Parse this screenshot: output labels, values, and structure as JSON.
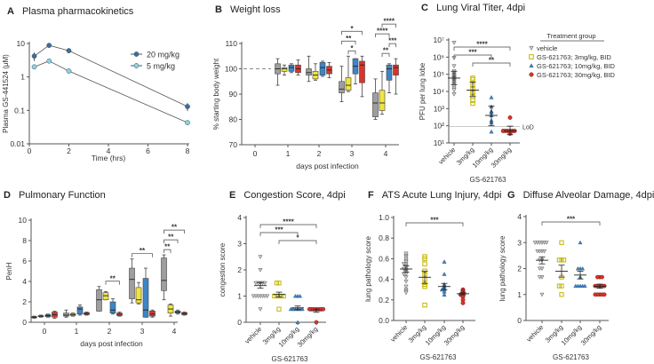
{
  "colors": {
    "vehicle": "#9e9e9e",
    "mg3": "#f0e442",
    "mg10": "#3d85c6",
    "mg30": "#d9342b",
    "pk20": "#3f6d98",
    "pk5": "#8fd3dc",
    "axis": "#555555"
  },
  "panels": {
    "A": {
      "letter": "A",
      "title": "Plasma pharmacokinetics"
    },
    "B": {
      "letter": "B",
      "title": "Weight loss"
    },
    "C": {
      "letter": "C",
      "title": "Lung Viral Titer, 4dpi"
    },
    "D": {
      "letter": "D",
      "title": "Pulmonary Function"
    },
    "E": {
      "letter": "E",
      "title": "Congestion Score, 4dpi"
    },
    "F": {
      "letter": "F",
      "title": "ATS Acute Lung Injury, 4dpi"
    },
    "G": {
      "letter": "G",
      "title": "Diffuse Alveolar Damage, 4dpi"
    }
  },
  "legend": {
    "title": "Treatment group",
    "items": [
      {
        "label": "vehicle",
        "marker": "triangle-down",
        "color": "#9e9e9e"
      },
      {
        "label": "GS-621763; 3mg/kg, BID",
        "marker": "square",
        "color": "#f0e442"
      },
      {
        "label": "GS-621763; 10mg/kg, BID",
        "marker": "triangle-up",
        "color": "#3d85c6"
      },
      {
        "label": "GS-621763; 30mg/kg, BID",
        "marker": "circle",
        "color": "#d9342b"
      }
    ]
  },
  "chart_data": [
    {
      "id": "A",
      "type": "line",
      "xlabel": "Time (hrs)",
      "ylabel": "Plasma GS-441524 (μM)",
      "yscale": "log",
      "ylim": [
        0.01,
        10
      ],
      "xlim": [
        0,
        8
      ],
      "xticks": [
        0,
        2,
        4,
        6,
        8
      ],
      "xtick_labels": [
        "0",
        "2",
        "4",
        "6",
        "8"
      ],
      "yticks": [
        0.01,
        0.1,
        1,
        10
      ],
      "ytick_labels": [
        "0.01",
        "0.1",
        "1",
        "10"
      ],
      "legend_position": "top-right",
      "series": [
        {
          "name": "20 mg/kg",
          "x": [
            0.25,
            1,
            2,
            8
          ],
          "y": [
            4.2,
            8.8,
            6.1,
            0.13
          ],
          "err": [
            1.2,
            0.6,
            0.3,
            0.035
          ]
        },
        {
          "name": "5 mg/kg",
          "x": [
            0.25,
            1,
            2,
            8
          ],
          "y": [
            2.0,
            3.0,
            1.5,
            0.043
          ],
          "err": [
            0.2,
            0.2,
            0.1,
            0.005
          ]
        }
      ]
    },
    {
      "id": "B",
      "type": "box",
      "xlabel": "days post infection",
      "ylabel": "% starting  body weight",
      "ylim": [
        70,
        110
      ],
      "yticks": [
        70,
        80,
        90,
        100,
        110
      ],
      "ytick_labels": [
        "70",
        "80",
        "90",
        "100",
        "110"
      ],
      "categories": [
        "0",
        "1",
        "2",
        "3",
        "4"
      ],
      "reference_line": 100,
      "groups": [
        "vehicle",
        "mg3",
        "mg10",
        "mg30"
      ],
      "boxes": {
        "1": [
          [
            93.5,
            98,
            100,
            102,
            104
          ],
          [
            97.5,
            99,
            100,
            100.5,
            101.5
          ],
          [
            98.5,
            99,
            100.5,
            101.5,
            102
          ],
          [
            97.5,
            98.5,
            100,
            101.5,
            103.5
          ]
        ],
        "2": [
          [
            95,
            97.5,
            98.5,
            100,
            105
          ],
          [
            95.5,
            96,
            97.5,
            99,
            102
          ],
          [
            97,
            97.5,
            100.5,
            102.5,
            103
          ],
          [
            96.5,
            98,
            99.5,
            101,
            102.5
          ]
        ],
        "3": [
          [
            87,
            90.5,
            92,
            95,
            101
          ],
          [
            91,
            91.5,
            93.5,
            96.5,
            105
          ],
          [
            94,
            98,
            101,
            104,
            104
          ],
          [
            89,
            94.5,
            101.5,
            103,
            105
          ]
        ],
        "4": [
          [
            80,
            81,
            86.5,
            90.5,
            96
          ],
          [
            82,
            83.5,
            86.5,
            91.5,
            99
          ],
          [
            90.5,
            95.5,
            100,
            101.5,
            102
          ],
          [
            90,
            97.5,
            100.5,
            101.5,
            104
          ]
        ]
      },
      "significance": [
        {
          "day": "3",
          "groups": [
            1,
            2
          ],
          "label": "*"
        },
        {
          "day": "3",
          "groups": [
            0,
            2
          ],
          "label": "**"
        },
        {
          "day": "3",
          "groups": [
            0,
            3
          ],
          "label": "*"
        },
        {
          "day": "4",
          "groups": [
            1,
            2
          ],
          "label": "**"
        },
        {
          "day": "4",
          "groups": [
            2,
            3
          ],
          "label": "***"
        },
        {
          "day": "4",
          "groups": [
            0,
            2
          ],
          "label": "****"
        },
        {
          "day": "4",
          "groups": [
            1,
            3
          ],
          "label": "****"
        }
      ]
    },
    {
      "id": "C",
      "type": "scatter",
      "xlabel": "GS-621763",
      "ylabel": "PFU per lung lobe",
      "yscale": "log",
      "ylim": [
        10,
        10000000
      ],
      "yticks": [
        10,
        100,
        1000,
        10000,
        100000,
        1000000,
        10000000
      ],
      "ytick_labels": [
        "10¹",
        "10²",
        "10³",
        "10⁴",
        "10⁵",
        "10⁶",
        "10⁷"
      ],
      "categories": [
        "vehicle",
        "3mg/kg",
        "10mg/kg",
        "30mg/kg"
      ],
      "lod": 90,
      "lod_label": "LoD",
      "points": [
        [
          7000000,
          900000,
          300000,
          150000,
          120000,
          100000,
          90000,
          80000,
          70000,
          65000,
          60000,
          55000,
          50000,
          45000,
          40000,
          35000,
          30000,
          25000,
          20000,
          15000,
          12000,
          7000
        ],
        [
          60000,
          50000,
          23000,
          15000,
          9000,
          8000,
          5000,
          3000,
          2000
        ],
        [
          4500,
          1300,
          700,
          600,
          400,
          200,
          150,
          45
        ],
        [
          300,
          50,
          50,
          50,
          50,
          50,
          50,
          35
        ]
      ],
      "mean": [
        60000,
        12000,
        400,
        50
      ],
      "error": [
        [
          150000,
          25000
        ],
        [
          35000,
          5000
        ],
        [
          1400,
          100
        ],
        [
          95,
          30
        ]
      ],
      "significance": [
        {
          "groups": [
            1,
            3
          ],
          "label": "**"
        },
        {
          "groups": [
            0,
            2
          ],
          "label": "***"
        },
        {
          "groups": [
            0,
            3
          ],
          "label": "****"
        }
      ]
    },
    {
      "id": "D",
      "type": "box",
      "xlabel": "days post infection",
      "ylabel": "PenH",
      "ylim": [
        0,
        10
      ],
      "yticks": [
        0,
        2,
        4,
        6,
        8,
        10
      ],
      "ytick_labels": [
        "0",
        "2",
        "4",
        "6",
        "8",
        "10"
      ],
      "categories": [
        "0",
        "1",
        "2",
        "3",
        "4"
      ],
      "groups": [
        "vehicle",
        "mg3",
        "mg10",
        "mg30"
      ],
      "boxes": {
        "0": [
          [
            0.4,
            0.45,
            0.5,
            0.55,
            0.6
          ],
          [
            0.5,
            0.55,
            0.6,
            0.65,
            0.7
          ],
          [
            0.5,
            0.55,
            0.65,
            0.75,
            0.8
          ],
          [
            0.4,
            0.5,
            0.75,
            1.0,
            1.1
          ]
        ],
        "1": [
          [
            0.5,
            0.6,
            0.7,
            0.9,
            1.2
          ],
          [
            0.6,
            0.65,
            0.75,
            0.85,
            0.9
          ],
          [
            0.7,
            0.8,
            1.3,
            1.5,
            1.7
          ],
          [
            0.7,
            0.75,
            0.85,
            0.95,
            1.0
          ]
        ],
        "2": [
          [
            1.1,
            1.1,
            2.2,
            3.2,
            3.5
          ],
          [
            2.2,
            2.2,
            2.6,
            2.9,
            3.0
          ],
          [
            0.8,
            0.9,
            1.2,
            2.0,
            2.3
          ],
          [
            0.6,
            0.65,
            0.8,
            0.9,
            1.0
          ]
        ],
        "3": [
          [
            1.9,
            2.3,
            4.2,
            5.3,
            6.2
          ],
          [
            1.8,
            1.9,
            2.2,
            3.4,
            3.9
          ],
          [
            0.5,
            0.5,
            1.2,
            4.3,
            5.3
          ],
          [
            0.5,
            0.6,
            0.8,
            1.1,
            1.2
          ]
        ],
        "4": [
          [
            2.2,
            3.1,
            4.1,
            6.3,
            6.6
          ],
          [
            0.6,
            0.9,
            1.3,
            1.7,
            1.8
          ],
          [
            0.8,
            0.9,
            1.0,
            1.1,
            1.2
          ],
          [
            0.7,
            0.75,
            0.85,
            0.95,
            1.0
          ]
        ]
      },
      "significance": [
        {
          "day": "2",
          "groups": [
            1,
            3
          ],
          "label": "**"
        },
        {
          "day": "3",
          "groups": [
            0,
            3
          ],
          "label": "**"
        },
        {
          "day": "4",
          "groups": [
            0,
            1
          ],
          "label": "**"
        },
        {
          "day": "4",
          "groups": [
            0,
            2
          ],
          "label": "**"
        },
        {
          "day": "4",
          "groups": [
            0,
            3
          ],
          "label": "**"
        }
      ]
    },
    {
      "id": "E",
      "type": "scatter",
      "xlabel": "GS-621763",
      "ylabel": "congestion score",
      "ylim": [
        0,
        4
      ],
      "yticks": [
        0,
        1,
        2,
        3,
        4
      ],
      "ytick_labels": [
        "0",
        "1",
        "2",
        "3",
        "4"
      ],
      "categories": [
        "vehicle",
        "3mg/kg",
        "10mg/kg",
        "30mg/kg"
      ],
      "points": [
        [
          2.5,
          2,
          1.5,
          1.5,
          1.5,
          1.5,
          1.5,
          1,
          1,
          1,
          1,
          1,
          1,
          1,
          0.5
        ],
        [
          1.5,
          1.5,
          1,
          1,
          1,
          1,
          1,
          0.5
        ],
        [
          1,
          1,
          1,
          0.5,
          0.5,
          0.5,
          0.5,
          0.5,
          0.5,
          0
        ],
        [
          0.5,
          0.5,
          0.5,
          0.5,
          0.5,
          0.5,
          0.5,
          0
        ]
      ],
      "mean": [
        1.4,
        1.06,
        0.55,
        0.44
      ],
      "error": [
        [
          1.52,
          1.3
        ],
        [
          1.15,
          0.97
        ],
        [
          0.62,
          0.48
        ],
        [
          0.5,
          0.38
        ]
      ],
      "significance": [
        {
          "groups": [
            1,
            3
          ],
          "label": "*"
        },
        {
          "groups": [
            0,
            2
          ],
          "label": "***"
        },
        {
          "groups": [
            0,
            3
          ],
          "label": "****"
        }
      ]
    },
    {
      "id": "F",
      "type": "scatter",
      "xlabel": "GS-621763",
      "ylabel": "lung pathology score",
      "ylim": [
        0,
        1
      ],
      "yticks": [
        0,
        0.2,
        0.4,
        0.6,
        0.8,
        1.0
      ],
      "ytick_labels": [
        "0.0",
        "0.2",
        "0.4",
        "0.6",
        "0.8",
        "1.0"
      ],
      "categories": [
        "vehicle",
        "3mg/kg",
        "10mg/kg",
        "30mg/kg"
      ],
      "points": [
        [
          0.65,
          0.63,
          0.62,
          0.6,
          0.58,
          0.57,
          0.55,
          0.55,
          0.53,
          0.52,
          0.5,
          0.5,
          0.48,
          0.47,
          0.45,
          0.45,
          0.42,
          0.38,
          0.33,
          0.3,
          0.28,
          0.27
        ],
        [
          0.62,
          0.6,
          0.55,
          0.48,
          0.45,
          0.4,
          0.35,
          0.33,
          0.15
        ],
        [
          0.57,
          0.45,
          0.35,
          0.33,
          0.31,
          0.3,
          0.3,
          0.28,
          0.25
        ],
        [
          0.3,
          0.29,
          0.28,
          0.27,
          0.26,
          0.25,
          0.25,
          0.24,
          0.23,
          0.2,
          0.17
        ]
      ],
      "mean": [
        0.5,
        0.42,
        0.33,
        0.26
      ],
      "error": [
        [
          0.53,
          0.47
        ],
        [
          0.48,
          0.36
        ],
        [
          0.36,
          0.3
        ],
        [
          0.27,
          0.25
        ]
      ],
      "significance": [
        {
          "groups": [
            0,
            3
          ],
          "label": "***"
        }
      ]
    },
    {
      "id": "G",
      "type": "scatter",
      "xlabel": "GS-621763",
      "ylabel": "lung pathology score",
      "ylim": [
        0,
        4
      ],
      "yticks": [
        0,
        1,
        2,
        3,
        4
      ],
      "ytick_labels": [
        "0",
        "1",
        "2",
        "3",
        "4"
      ],
      "categories": [
        "vehicle",
        "3mg/kg",
        "10mg/kg",
        "30mg/kg"
      ],
      "points": [
        [
          3,
          3,
          3,
          3,
          3,
          3,
          2.67,
          2.67,
          2.67,
          2.67,
          2.33,
          2.33,
          2,
          2,
          1.67,
          1.67,
          1
        ],
        [
          3,
          2.33,
          2.33,
          2.33,
          1.67,
          1.33,
          1.33,
          1
        ],
        [
          3,
          2,
          2,
          2,
          1.67,
          1.33,
          1.33,
          1.33,
          1.33,
          1.33
        ],
        [
          1.67,
          1.67,
          1.67,
          1.33,
          1.33,
          1.33,
          1.33,
          1.33,
          1,
          1,
          1,
          1,
          1
        ]
      ],
      "mean": [
        2.32,
        1.9,
        1.75,
        1.32
      ],
      "error": [
        [
          2.45,
          2.18
        ],
        [
          2.13,
          1.67
        ],
        [
          1.9,
          1.6
        ],
        [
          1.4,
          1.24
        ]
      ],
      "significance": [
        {
          "groups": [
            0,
            3
          ],
          "label": "***"
        }
      ]
    }
  ]
}
